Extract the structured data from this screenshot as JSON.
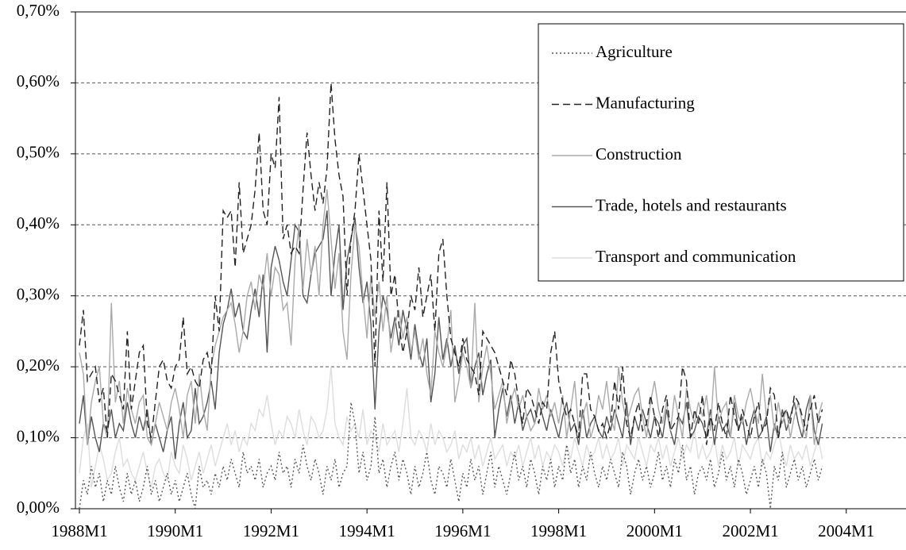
{
  "chart_data": {
    "type": "line",
    "categories": [
      "1988M1",
      null,
      null,
      null,
      null,
      null,
      null,
      null,
      null,
      null,
      null,
      null,
      null,
      null,
      null,
      null,
      null,
      null,
      null,
      null,
      null,
      null,
      null,
      null,
      "1990M1",
      null,
      null,
      null,
      null,
      null,
      null,
      null,
      null,
      null,
      null,
      null,
      null,
      null,
      null,
      null,
      null,
      null,
      null,
      null,
      null,
      null,
      null,
      null,
      "1992M1",
      null,
      null,
      null,
      null,
      null,
      null,
      null,
      null,
      null,
      null,
      null,
      null,
      null,
      null,
      null,
      null,
      null,
      null,
      null,
      null,
      null,
      null,
      null,
      "1994M1",
      null,
      null,
      null,
      null,
      null,
      null,
      null,
      null,
      null,
      null,
      null,
      null,
      null,
      null,
      null,
      null,
      null,
      null,
      null,
      null,
      null,
      null,
      null,
      "1996M1",
      null,
      null,
      null,
      null,
      null,
      null,
      null,
      null,
      null,
      null,
      null,
      null,
      null,
      null,
      null,
      null,
      null,
      null,
      null,
      null,
      null,
      null,
      null,
      "1998M1",
      null,
      null,
      null,
      null,
      null,
      null,
      null,
      null,
      null,
      null,
      null,
      null,
      null,
      null,
      null,
      null,
      null,
      null,
      null,
      null,
      null,
      null,
      null,
      "2000M1",
      null,
      null,
      null,
      null,
      null,
      null,
      null,
      null,
      null,
      null,
      null,
      null,
      null,
      null,
      null,
      null,
      null,
      null,
      null,
      null,
      null,
      null,
      null,
      "2002M1",
      null,
      null,
      null,
      null,
      null,
      null,
      null,
      null,
      null,
      null,
      null,
      null,
      null,
      null,
      null,
      null,
      null,
      null,
      null,
      null,
      null,
      null,
      null,
      "2004M1"
    ],
    "series": [
      {
        "name": "Agriculture",
        "color": "#555555",
        "style": "dotted",
        "values": [
          0.0,
          0.04,
          0.02,
          0.06,
          0.03,
          0.05,
          0.01,
          0.04,
          0.02,
          0.06,
          0.03,
          0.01,
          0.05,
          0.02,
          0.04,
          0.01,
          0.03,
          0.06,
          0.02,
          0.04,
          0.01,
          0.03,
          0.05,
          0.02,
          0.04,
          0.01,
          0.03,
          0.05,
          0.02,
          0.0,
          0.06,
          0.03,
          0.04,
          0.02,
          0.05,
          0.03,
          0.06,
          0.04,
          0.07,
          0.05,
          0.03,
          0.08,
          0.05,
          0.06,
          0.04,
          0.07,
          0.03,
          0.05,
          0.06,
          0.04,
          0.08,
          0.05,
          0.06,
          0.03,
          0.07,
          0.05,
          0.09,
          0.06,
          0.04,
          0.07,
          0.05,
          0.02,
          0.06,
          0.04,
          0.07,
          0.03,
          0.05,
          0.06,
          0.15,
          0.12,
          0.05,
          0.08,
          0.04,
          0.06,
          0.13,
          0.05,
          0.07,
          0.03,
          0.06,
          0.08,
          0.04,
          0.07,
          0.05,
          0.02,
          0.06,
          0.03,
          0.05,
          0.08,
          0.04,
          0.02,
          0.06,
          0.05,
          0.03,
          0.07,
          0.04,
          0.01,
          0.05,
          0.03,
          0.07,
          0.04,
          0.06,
          0.02,
          0.05,
          0.08,
          0.03,
          0.06,
          0.04,
          0.02,
          0.05,
          0.08,
          0.04,
          0.06,
          0.03,
          0.07,
          0.05,
          0.02,
          0.06,
          0.04,
          0.07,
          0.03,
          0.06,
          0.04,
          0.09,
          0.05,
          0.07,
          0.03,
          0.06,
          0.04,
          0.08,
          0.05,
          0.03,
          0.06,
          0.04,
          0.07,
          0.05,
          0.03,
          0.08,
          0.06,
          0.02,
          0.05,
          0.07,
          0.04,
          0.06,
          0.03,
          0.05,
          0.08,
          0.04,
          0.06,
          0.03,
          0.07,
          0.05,
          0.09,
          0.04,
          0.06,
          0.02,
          0.05,
          0.06,
          0.04,
          0.07,
          0.03,
          0.05,
          0.08,
          0.04,
          0.06,
          0.03,
          0.07,
          0.05,
          0.02,
          0.04,
          0.06,
          0.03,
          0.07,
          0.05,
          0.0,
          0.06,
          0.04,
          0.08,
          0.03,
          0.05,
          0.07,
          0.04,
          0.06,
          0.03,
          0.05,
          0.07,
          0.04,
          0.06,
          null,
          null,
          null,
          null,
          null,
          null
        ]
      },
      {
        "name": "Manufacturing",
        "color": "#222222",
        "style": "dashed",
        "values": [
          0.23,
          0.28,
          0.18,
          0.19,
          0.2,
          0.15,
          0.17,
          0.1,
          0.19,
          0.18,
          0.16,
          0.14,
          0.25,
          0.14,
          0.18,
          0.22,
          0.23,
          0.12,
          0.1,
          0.15,
          0.2,
          0.21,
          0.18,
          0.17,
          0.2,
          0.21,
          0.27,
          0.19,
          0.2,
          0.18,
          0.17,
          0.21,
          0.22,
          0.19,
          0.3,
          0.25,
          0.42,
          0.41,
          0.42,
          0.34,
          0.46,
          0.36,
          0.38,
          0.4,
          0.45,
          0.53,
          0.42,
          0.4,
          0.5,
          0.48,
          0.58,
          0.38,
          0.4,
          0.36,
          0.37,
          0.36,
          0.45,
          0.53,
          0.47,
          0.42,
          0.46,
          0.43,
          0.48,
          0.6,
          0.52,
          0.47,
          0.44,
          0.3,
          0.38,
          0.42,
          0.5,
          0.45,
          0.4,
          0.35,
          0.2,
          0.42,
          0.32,
          0.46,
          0.3,
          0.33,
          0.26,
          0.22,
          0.25,
          0.3,
          0.28,
          0.34,
          0.27,
          0.3,
          0.33,
          0.25,
          0.36,
          0.38,
          0.3,
          0.24,
          0.22,
          0.2,
          0.24,
          0.21,
          0.2,
          0.19,
          0.16,
          0.25,
          0.24,
          0.23,
          0.22,
          0.2,
          0.18,
          0.16,
          0.21,
          0.19,
          0.15,
          0.12,
          0.17,
          0.16,
          0.14,
          0.12,
          0.15,
          0.14,
          0.22,
          0.25,
          0.18,
          0.15,
          0.13,
          0.14,
          0.12,
          0.1,
          0.19,
          0.19,
          0.14,
          0.13,
          0.11,
          0.12,
          0.1,
          0.12,
          0.18,
          0.14,
          0.2,
          0.12,
          0.1,
          0.13,
          0.15,
          0.11,
          0.12,
          0.16,
          0.13,
          0.1,
          0.14,
          0.16,
          0.11,
          0.12,
          0.13,
          0.2,
          0.18,
          0.1,
          0.14,
          0.12,
          0.16,
          0.09,
          0.13,
          0.11,
          0.15,
          0.12,
          0.1,
          0.16,
          0.13,
          0.11,
          0.14,
          0.12,
          0.1,
          0.13,
          0.15,
          0.11,
          0.12,
          0.17,
          0.16,
          0.1,
          0.13,
          0.14,
          0.12,
          0.16,
          0.15,
          0.13,
          0.11,
          0.14,
          0.16,
          0.12,
          0.14,
          null,
          null,
          null,
          null,
          null,
          null
        ]
      },
      {
        "name": "Construction",
        "color": "#aaaaaa",
        "style": "solid",
        "values": [
          0.22,
          0.19,
          0.09,
          0.15,
          0.18,
          0.2,
          0.12,
          0.1,
          0.29,
          0.15,
          0.18,
          0.12,
          0.17,
          0.14,
          0.12,
          0.15,
          0.16,
          0.1,
          0.09,
          0.12,
          0.15,
          0.13,
          0.11,
          0.15,
          0.17,
          0.14,
          0.1,
          0.16,
          0.18,
          0.12,
          0.19,
          0.14,
          0.11,
          0.2,
          0.23,
          0.25,
          0.27,
          0.28,
          0.29,
          0.26,
          0.22,
          0.25,
          0.3,
          0.32,
          0.28,
          0.33,
          0.31,
          0.36,
          0.3,
          0.34,
          0.33,
          0.28,
          0.29,
          0.23,
          0.35,
          0.4,
          0.31,
          0.38,
          0.33,
          0.37,
          0.3,
          0.4,
          0.45,
          0.38,
          0.31,
          0.36,
          0.25,
          0.21,
          0.33,
          0.4,
          0.37,
          0.3,
          0.24,
          0.33,
          0.27,
          0.32,
          0.25,
          0.3,
          0.22,
          0.26,
          0.28,
          0.24,
          0.27,
          0.22,
          0.25,
          0.21,
          0.24,
          0.19,
          0.16,
          0.25,
          0.22,
          0.2,
          0.23,
          0.28,
          0.15,
          0.18,
          0.22,
          0.2,
          0.17,
          0.29,
          0.15,
          0.2,
          0.23,
          0.19,
          0.14,
          0.16,
          0.18,
          0.12,
          0.15,
          0.17,
          0.14,
          0.16,
          0.13,
          0.11,
          0.12,
          0.17,
          0.14,
          0.16,
          0.13,
          0.15,
          0.12,
          0.16,
          0.1,
          0.14,
          0.18,
          0.11,
          0.13,
          0.15,
          0.1,
          0.12,
          0.16,
          0.14,
          0.18,
          0.13,
          0.11,
          0.2,
          0.15,
          0.12,
          0.14,
          0.16,
          0.17,
          0.13,
          0.1,
          0.15,
          0.18,
          0.14,
          0.12,
          0.15,
          0.11,
          0.16,
          0.13,
          0.1,
          0.17,
          0.14,
          0.12,
          0.15,
          0.13,
          0.16,
          0.11,
          0.2,
          0.12,
          0.14,
          0.15,
          0.1,
          0.16,
          0.13,
          0.12,
          0.15,
          0.17,
          0.14,
          0.12,
          0.19,
          0.13,
          0.16,
          0.11,
          0.15,
          0.12,
          0.14,
          0.1,
          0.13,
          0.15,
          0.12,
          0.1,
          0.16,
          0.09,
          0.13,
          0.15,
          null,
          null,
          null,
          null,
          null,
          null
        ]
      },
      {
        "name": "Trade, hotels and restaurants",
        "color": "#555555",
        "style": "solid",
        "values": [
          0.12,
          0.16,
          0.09,
          0.13,
          0.1,
          0.08,
          0.12,
          0.11,
          0.14,
          0.1,
          0.12,
          0.11,
          0.15,
          0.12,
          0.1,
          0.13,
          0.11,
          0.14,
          0.09,
          0.12,
          0.1,
          0.08,
          0.11,
          0.13,
          0.07,
          0.12,
          0.15,
          0.1,
          0.11,
          0.17,
          0.12,
          0.13,
          0.15,
          0.18,
          0.14,
          0.22,
          0.26,
          0.28,
          0.31,
          0.27,
          0.29,
          0.25,
          0.24,
          0.28,
          0.31,
          0.27,
          0.33,
          0.22,
          0.34,
          0.37,
          0.35,
          0.32,
          0.3,
          0.35,
          0.4,
          0.39,
          0.3,
          0.29,
          0.33,
          0.36,
          0.37,
          0.38,
          0.42,
          0.3,
          0.36,
          0.4,
          0.28,
          0.35,
          0.38,
          0.41,
          0.34,
          0.29,
          0.32,
          0.26,
          0.14,
          0.25,
          0.3,
          0.28,
          0.24,
          0.27,
          0.23,
          0.28,
          0.25,
          0.21,
          0.26,
          0.22,
          0.2,
          0.24,
          0.15,
          0.19,
          0.27,
          0.21,
          0.24,
          0.2,
          0.23,
          0.19,
          0.23,
          0.24,
          0.17,
          0.2,
          0.22,
          0.16,
          0.19,
          0.21,
          0.1,
          0.14,
          0.17,
          0.13,
          0.16,
          0.12,
          0.15,
          0.11,
          0.13,
          0.14,
          0.12,
          0.15,
          0.13,
          0.11,
          0.14,
          0.12,
          0.1,
          0.13,
          0.15,
          0.11,
          0.12,
          0.09,
          0.14,
          0.1,
          0.12,
          0.13,
          0.11,
          0.1,
          0.13,
          0.11,
          0.14,
          0.12,
          0.1,
          0.15,
          0.09,
          0.13,
          0.11,
          0.14,
          0.12,
          0.1,
          0.13,
          0.12,
          0.1,
          0.14,
          0.11,
          0.09,
          0.13,
          0.12,
          0.15,
          0.1,
          0.11,
          0.13,
          0.12,
          0.1,
          0.14,
          0.09,
          0.13,
          0.11,
          0.12,
          0.1,
          0.15,
          0.11,
          0.13,
          0.09,
          0.12,
          0.14,
          0.1,
          0.11,
          0.13,
          0.08,
          0.12,
          0.1,
          0.14,
          0.11,
          0.13,
          0.15,
          0.12,
          0.1,
          0.14,
          0.16,
          0.11,
          0.09,
          0.12,
          null,
          null,
          null,
          null,
          null,
          null
        ]
      },
      {
        "name": "Transport and communication",
        "color": "#dddddd",
        "style": "solid",
        "values": [
          0.05,
          0.1,
          0.12,
          0.03,
          0.06,
          0.09,
          0.07,
          0.04,
          0.05,
          0.08,
          0.1,
          0.06,
          0.07,
          0.05,
          0.04,
          0.06,
          0.08,
          0.05,
          0.03,
          0.06,
          0.07,
          0.05,
          0.04,
          0.08,
          0.06,
          0.05,
          0.09,
          0.07,
          0.04,
          0.06,
          0.08,
          0.05,
          0.07,
          0.09,
          0.06,
          0.08,
          0.1,
          0.12,
          0.09,
          0.11,
          0.08,
          0.1,
          0.09,
          0.12,
          0.11,
          0.14,
          0.13,
          0.16,
          0.12,
          0.09,
          0.11,
          0.1,
          0.13,
          0.12,
          0.1,
          0.14,
          0.11,
          0.09,
          0.13,
          0.12,
          0.1,
          0.11,
          0.14,
          0.2,
          0.12,
          0.1,
          0.09,
          0.13,
          0.11,
          0.12,
          0.1,
          0.14,
          0.09,
          0.11,
          0.1,
          0.08,
          0.12,
          0.09,
          0.1,
          0.11,
          0.08,
          0.12,
          0.17,
          0.1,
          0.09,
          0.11,
          0.1,
          0.08,
          0.12,
          0.09,
          0.11,
          0.1,
          0.08,
          0.09,
          0.11,
          0.07,
          0.09,
          0.08,
          0.1,
          0.07,
          0.09,
          0.06,
          0.08,
          0.1,
          0.07,
          0.08,
          0.09,
          0.06,
          0.08,
          0.07,
          0.09,
          0.06,
          0.08,
          0.1,
          0.07,
          0.09,
          0.06,
          0.08,
          0.07,
          0.09,
          0.08,
          0.06,
          0.09,
          0.07,
          0.1,
          0.08,
          0.06,
          0.09,
          0.07,
          0.08,
          0.1,
          0.07,
          0.09,
          0.07,
          0.08,
          0.1,
          0.06,
          0.09,
          0.08,
          0.07,
          0.1,
          0.08,
          0.06,
          0.09,
          0.08,
          0.1,
          0.07,
          0.09,
          0.06,
          0.08,
          0.1,
          0.07,
          0.09,
          0.08,
          0.11,
          0.07,
          0.09,
          0.07,
          0.08,
          0.1,
          0.06,
          0.09,
          0.07,
          0.08,
          0.1,
          0.06,
          0.09,
          0.08,
          0.07,
          0.09,
          0.1,
          0.06,
          0.08,
          0.07,
          0.09,
          0.11,
          0.08,
          0.06,
          0.09,
          0.07,
          0.08,
          0.07,
          0.09,
          0.06,
          0.08,
          0.1,
          0.07,
          null,
          null,
          null,
          null,
          null,
          null
        ]
      }
    ],
    "ylim": [
      0,
      0.7
    ],
    "yticks": [
      {
        "value": 0,
        "label": "0,00%"
      },
      {
        "value": 0.1,
        "label": "0,10%"
      },
      {
        "value": 0.2,
        "label": "0,20%"
      },
      {
        "value": 0.3,
        "label": "0,30%"
      },
      {
        "value": 0.4,
        "label": "0,40%"
      },
      {
        "value": 0.5,
        "label": "0,50%"
      },
      {
        "value": 0.6,
        "label": "0,60%"
      },
      {
        "value": 0.7,
        "label": "0,70%"
      }
    ],
    "grid": true,
    "legend": "top-right"
  }
}
